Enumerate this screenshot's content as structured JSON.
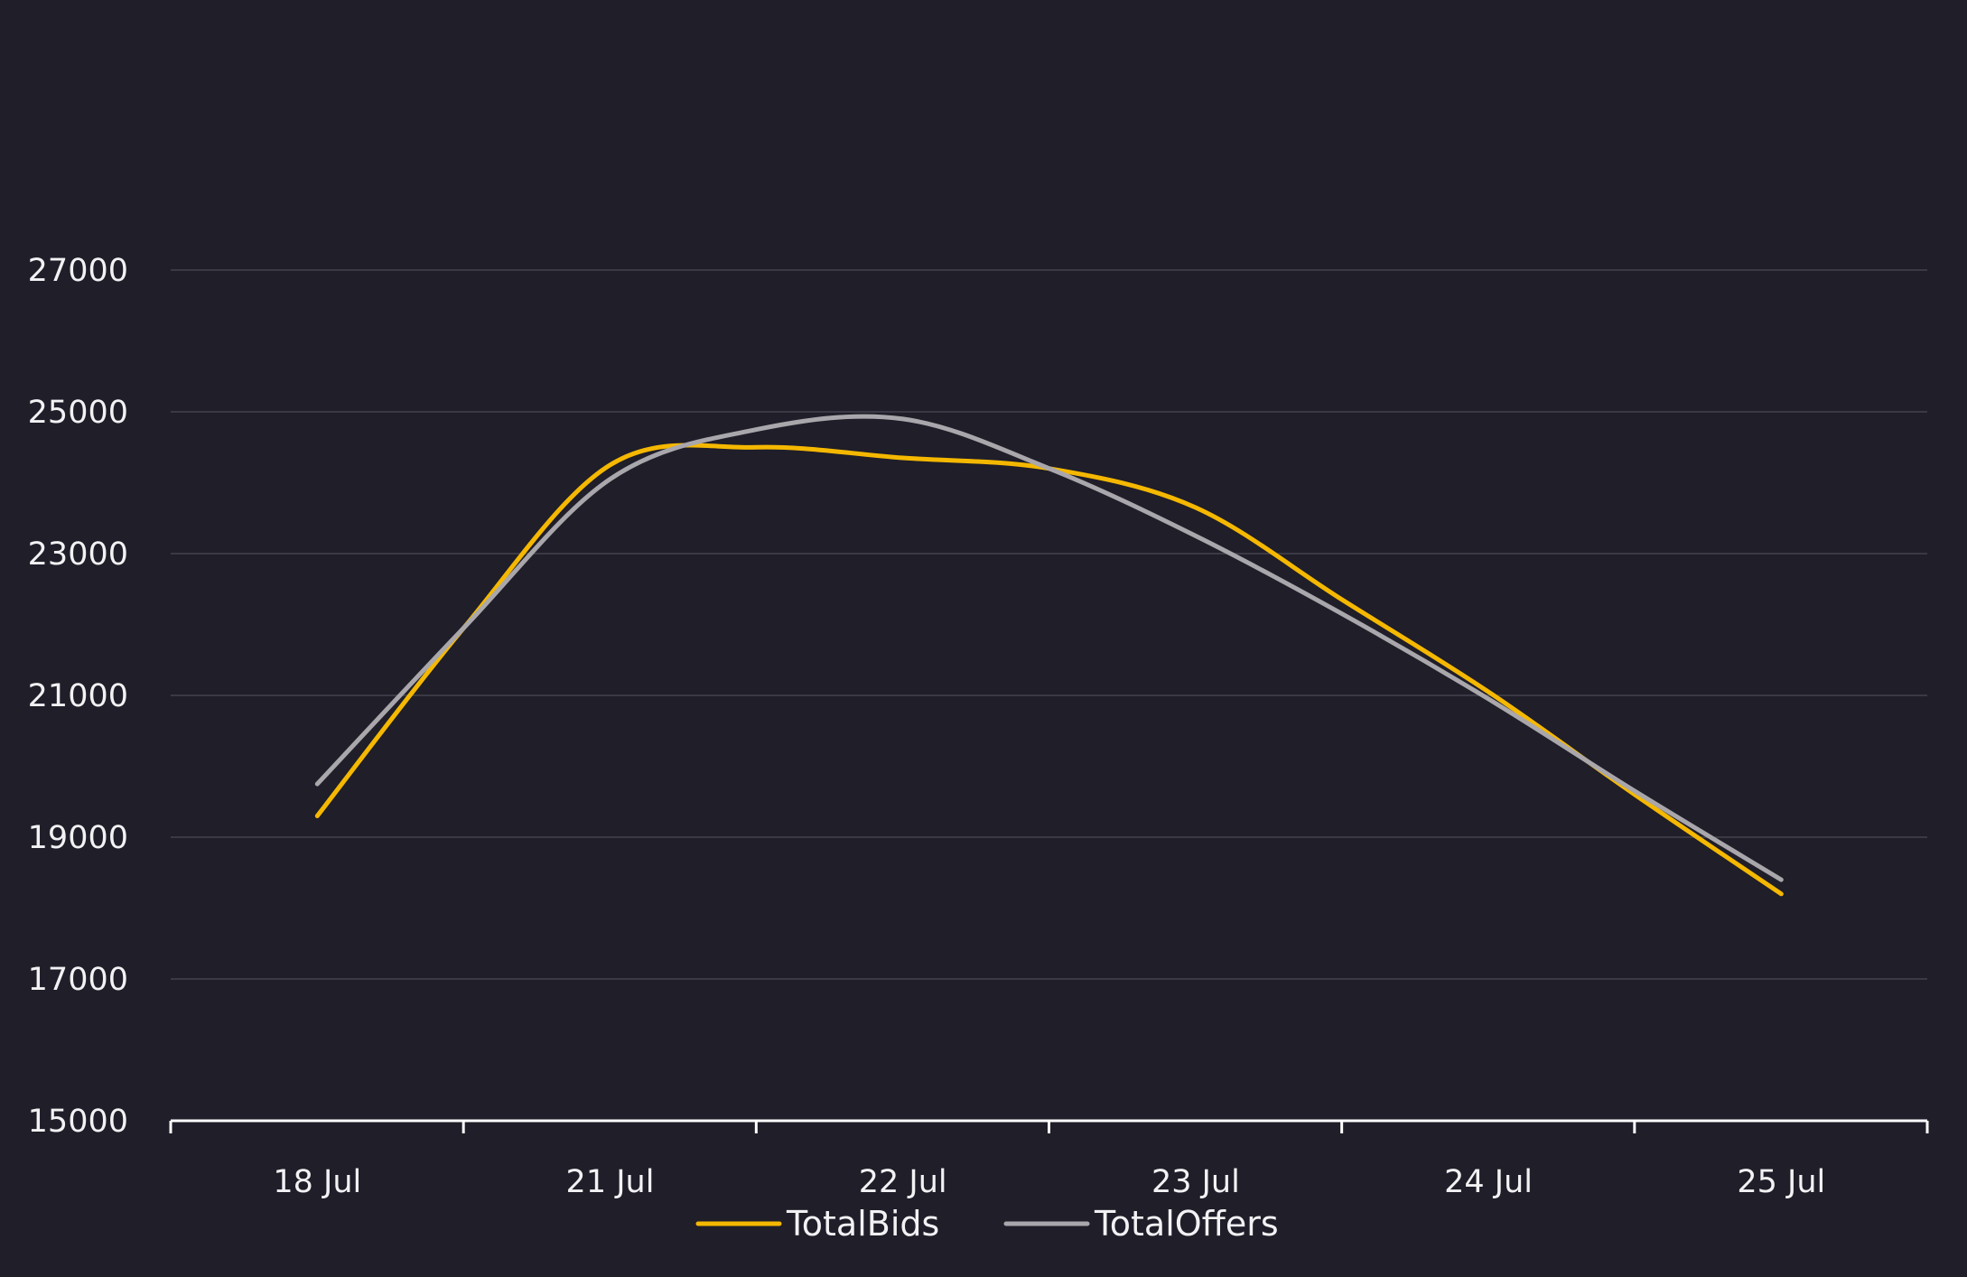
{
  "chart_data": {
    "type": "line",
    "categories": [
      "18 Jul",
      "21 Jul",
      "22 Jul",
      "23 Jul",
      "24 Jul",
      "25 Jul"
    ],
    "series": [
      {
        "name": "TotalBids",
        "color": "#f5b800",
        "x": [
          0,
          0.5,
          1,
          1.5,
          2,
          2.5,
          3,
          3.5,
          4,
          4.5,
          5
        ],
        "values": [
          19300,
          21950,
          24250,
          24500,
          24350,
          24200,
          23650,
          22350,
          21050,
          19600,
          18200
        ]
      },
      {
        "name": "TotalOffers",
        "color": "#a9a7ab",
        "x": [
          0,
          0.5,
          1,
          1.5,
          2,
          2.5,
          3,
          3.5,
          4,
          4.5,
          5
        ],
        "values": [
          19750,
          21950,
          24050,
          24750,
          24900,
          24200,
          23250,
          22150,
          20950,
          19650,
          18400
        ]
      }
    ],
    "title": "",
    "xlabel": "",
    "ylabel": "",
    "ylim": [
      15000,
      27000
    ],
    "yticks": [
      "27000",
      "25000",
      "23000",
      "21000",
      "19000",
      "17000",
      "15000"
    ],
    "grid": true,
    "legend": "bottom-center",
    "colors": {
      "background": "#1f1e29",
      "grid": "#3b3a44",
      "axis": "#ffffff",
      "text": "#f2f2f4"
    }
  }
}
